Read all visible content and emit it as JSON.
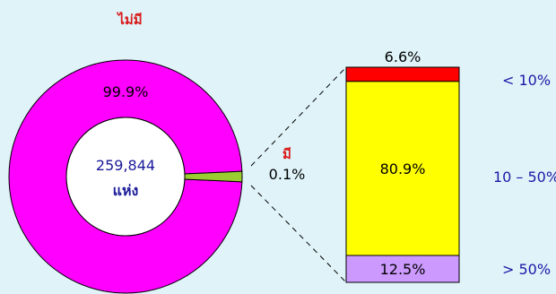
{
  "colors": {
    "background": "#dff3f9",
    "donut": "#ff00ff",
    "donut_hole": "#ffffff",
    "slice_has": "#9acd32",
    "bar_low": "#ff0000",
    "bar_mid": "#ffff00",
    "bar_high": "#cc99ff",
    "title_red": "#d91c1c",
    "range_blue": "#1a1aa6",
    "center_blue": "#1a1a99",
    "dashes": "#000000"
  },
  "chart_data": [
    {
      "type": "pie",
      "center_label": {
        "count": "259,844",
        "unit": "แห่ง"
      },
      "slices": [
        {
          "label": "ไม่มี",
          "value": 99.9,
          "value_label": "99.9%"
        },
        {
          "label": "มี",
          "value": 0.1,
          "value_label": "0.1%"
        }
      ]
    },
    {
      "type": "bar",
      "stacked": true,
      "segments": [
        {
          "range": "< 10%",
          "value": 6.6,
          "value_label": "6.6%"
        },
        {
          "range": "10 – 50%",
          "value": 80.9,
          "value_label": "80.9%"
        },
        {
          "range": "> 50%",
          "value": 12.5,
          "value_label": "12.5%"
        }
      ]
    }
  ]
}
